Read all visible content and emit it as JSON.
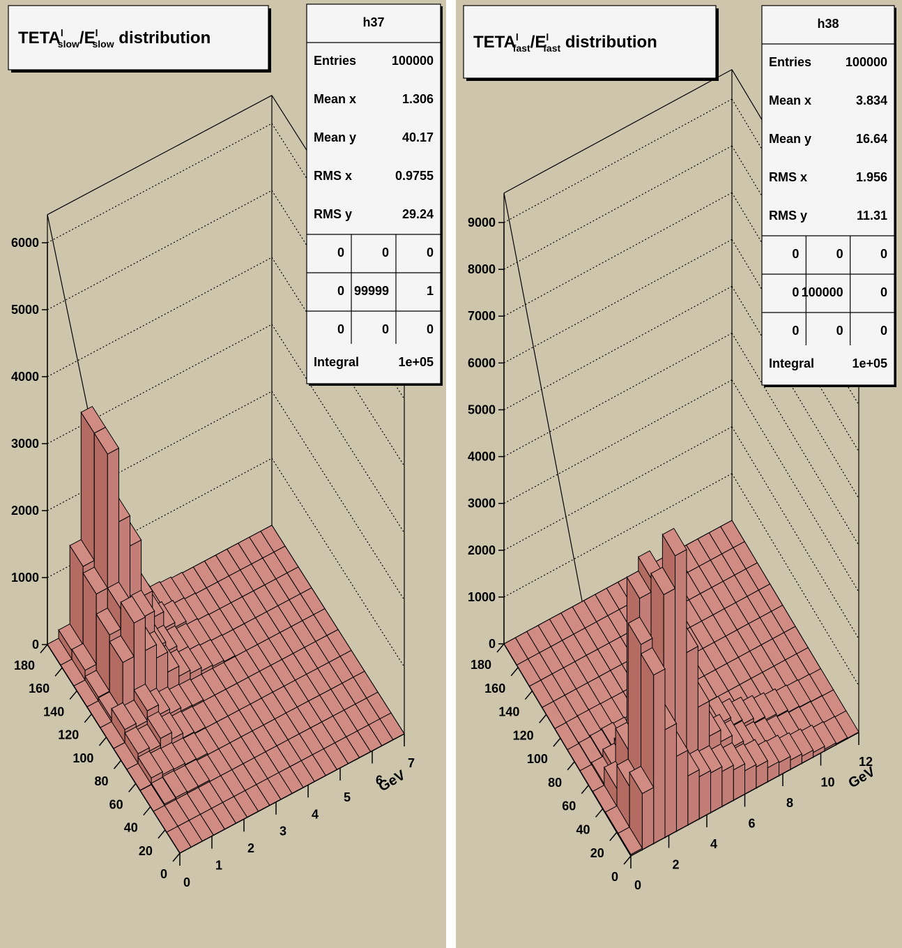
{
  "colors": {
    "canvas_bg": "#cdc6ad",
    "bar_front": "#c27e76",
    "bar_top": "#d08b82",
    "bar_side": "#b36b62",
    "edge": "#000000",
    "box_bg": "#f5f5f5"
  },
  "chart_data": [
    {
      "type": "bar3d",
      "title": {
        "main": "TETA",
        "sup": "l",
        "sub": "slow",
        "sep": "/E",
        "sup2": "l",
        "sub2": "slow",
        "rest": " distribution"
      },
      "stats": {
        "name": "h37",
        "rows": [
          [
            "Entries",
            "100000"
          ],
          [
            "Mean x",
            "1.306"
          ],
          [
            "Mean y",
            "40.17"
          ],
          [
            "RMS x",
            "0.9755"
          ],
          [
            "RMS y",
            "29.24"
          ]
        ],
        "grid": [
          [
            "0",
            "0",
            "0"
          ],
          [
            "0",
            "99999",
            "1"
          ],
          [
            "0",
            "0",
            "0"
          ]
        ],
        "integral": [
          "Integral",
          "1e+05"
        ]
      },
      "zlim": [
        0,
        6000
      ],
      "zticks": [
        "0",
        "1000",
        "2000",
        "3000",
        "4000",
        "5000",
        "6000"
      ],
      "xticks": [
        "0",
        "1",
        "2",
        "3",
        "4",
        "5",
        "6",
        "7"
      ],
      "xlabel": "GeV",
      "yticks": [
        "0",
        "20",
        "40",
        "60",
        "80",
        "100",
        "120",
        "140",
        "160",
        "180"
      ],
      "x_bins": [
        0,
        0.35,
        0.7,
        1.05,
        1.4,
        1.75,
        2.1,
        2.45,
        2.8,
        3.15,
        3.5,
        3.85,
        4.2,
        4.55,
        4.9,
        5.25,
        5.6,
        5.95,
        6.3,
        6.65,
        7
      ],
      "y_bins": [
        0,
        18,
        36,
        54,
        72,
        90,
        108,
        126,
        144,
        162,
        180
      ],
      "heights": [
        [
          0,
          0,
          0,
          0,
          0,
          0,
          0,
          0,
          0,
          0,
          0,
          0,
          0,
          0,
          0,
          0,
          0,
          0,
          0,
          0
        ],
        [
          0,
          0,
          0,
          0,
          0,
          0,
          0,
          0,
          0,
          0,
          0,
          0,
          0,
          0,
          0,
          0,
          0,
          0,
          0,
          0
        ],
        [
          0,
          20,
          30,
          20,
          20,
          0,
          0,
          0,
          0,
          0,
          0,
          0,
          0,
          0,
          0,
          0,
          0,
          0,
          0,
          0
        ],
        [
          5,
          100,
          60,
          50,
          30,
          20,
          0,
          0,
          0,
          0,
          0,
          0,
          0,
          0,
          0,
          0,
          0,
          0,
          0,
          0
        ],
        [
          5,
          150,
          100,
          200,
          100,
          30,
          10,
          0,
          0,
          0,
          0,
          0,
          0,
          0,
          0,
          0,
          0,
          0,
          0,
          0
        ],
        [
          5,
          200,
          150,
          300,
          150,
          80,
          30,
          20,
          0,
          0,
          0,
          0,
          0,
          0,
          0,
          0,
          0,
          0,
          0,
          0
        ],
        [
          5,
          50,
          800,
          1300,
          800,
          600,
          300,
          150,
          100,
          50,
          30,
          10,
          0,
          0,
          0,
          0,
          0,
          0,
          0,
          0
        ],
        [
          5,
          60,
          900,
          1200,
          800,
          900,
          350,
          200,
          100,
          50,
          30,
          10,
          0,
          0,
          0,
          0,
          0,
          0,
          0,
          0
        ],
        [
          5,
          150,
          1200,
          3200,
          2100,
          1650,
          800,
          400,
          150,
          80,
          30,
          10,
          0,
          0,
          0,
          0,
          0,
          0,
          0,
          0
        ],
        [
          5,
          130,
          1300,
          3200,
          1750,
          1400,
          450,
          200,
          100,
          50,
          30,
          10,
          0,
          0,
          0,
          0,
          0,
          0,
          0,
          0
        ]
      ]
    },
    {
      "type": "bar3d",
      "title": {
        "main": "TETA",
        "sup": "l",
        "sub": "fast",
        "sep": "/E",
        "sup2": "l",
        "sub2": "fast",
        "rest": " distribution"
      },
      "stats": {
        "name": "h38",
        "rows": [
          [
            "Entries",
            "100000"
          ],
          [
            "Mean x",
            "3.834"
          ],
          [
            "Mean y",
            "16.64"
          ],
          [
            "RMS x",
            "1.956"
          ],
          [
            "RMS y",
            "11.31"
          ]
        ],
        "grid": [
          [
            "0",
            "0",
            "0"
          ],
          [
            "0",
            "100000",
            "0"
          ],
          [
            "0",
            "0",
            "0"
          ]
        ],
        "integral": [
          "Integral",
          "1e+05"
        ]
      },
      "zlim": [
        0,
        9000
      ],
      "zticks": [
        "0",
        "1000",
        "2000",
        "3000",
        "4000",
        "5000",
        "6000",
        "7000",
        "8000",
        "9000"
      ],
      "xticks": [
        "0",
        "2",
        "4",
        "6",
        "8",
        "10",
        "12"
      ],
      "xlabel": "GeV",
      "yticks": [
        "0",
        "20",
        "40",
        "60",
        "80",
        "100",
        "120",
        "140",
        "160",
        "180"
      ],
      "x_bins": [
        0,
        0.6,
        1.2,
        1.8,
        2.4,
        3.0,
        3.6,
        4.2,
        4.8,
        5.4,
        6.0,
        6.6,
        7.2,
        7.8,
        8.4,
        9.0,
        9.6,
        10.2,
        10.8,
        11.4,
        12
      ],
      "y_bins": [
        0,
        18,
        36,
        54,
        72,
        90,
        108,
        126,
        144,
        162,
        180
      ],
      "heights": [
        [
          30,
          1200,
          3600,
          2300,
          1600,
          1050,
          900,
          850,
          750,
          650,
          500,
          450,
          300,
          280,
          200,
          150,
          100,
          40,
          20,
          10
        ],
        [
          30,
          900,
          3800,
          2900,
          4600,
          5300,
          3100,
          1800,
          1050,
          800,
          550,
          400,
          250,
          200,
          120,
          80,
          40,
          20,
          10,
          5
        ],
        [
          20,
          400,
          1100,
          4200,
          4500,
          3200,
          2900,
          1900,
          1250,
          650,
          600,
          420,
          320,
          220,
          150,
          100,
          50,
          30,
          15,
          5
        ],
        [
          10,
          50,
          200,
          300,
          150,
          100,
          60,
          40,
          30,
          20,
          10,
          5,
          0,
          0,
          0,
          0,
          0,
          0,
          0,
          0
        ],
        [
          5,
          20,
          40,
          60,
          40,
          20,
          10,
          5,
          0,
          0,
          0,
          0,
          0,
          0,
          0,
          0,
          0,
          0,
          0,
          0
        ],
        [
          0,
          5,
          10,
          10,
          5,
          0,
          0,
          0,
          0,
          0,
          0,
          0,
          0,
          0,
          0,
          0,
          0,
          0,
          0,
          0
        ],
        [
          0,
          0,
          0,
          0,
          0,
          0,
          0,
          0,
          0,
          0,
          0,
          0,
          0,
          0,
          0,
          0,
          0,
          0,
          0,
          0
        ],
        [
          0,
          0,
          0,
          0,
          0,
          0,
          0,
          0,
          0,
          0,
          0,
          0,
          0,
          0,
          0,
          0,
          0,
          0,
          0,
          0
        ],
        [
          0,
          0,
          0,
          0,
          0,
          0,
          0,
          0,
          0,
          0,
          0,
          0,
          0,
          0,
          0,
          0,
          0,
          0,
          0,
          0
        ],
        [
          0,
          0,
          0,
          0,
          0,
          0,
          0,
          0,
          0,
          0,
          0,
          0,
          0,
          0,
          0,
          0,
          0,
          0,
          0,
          0
        ]
      ]
    }
  ]
}
